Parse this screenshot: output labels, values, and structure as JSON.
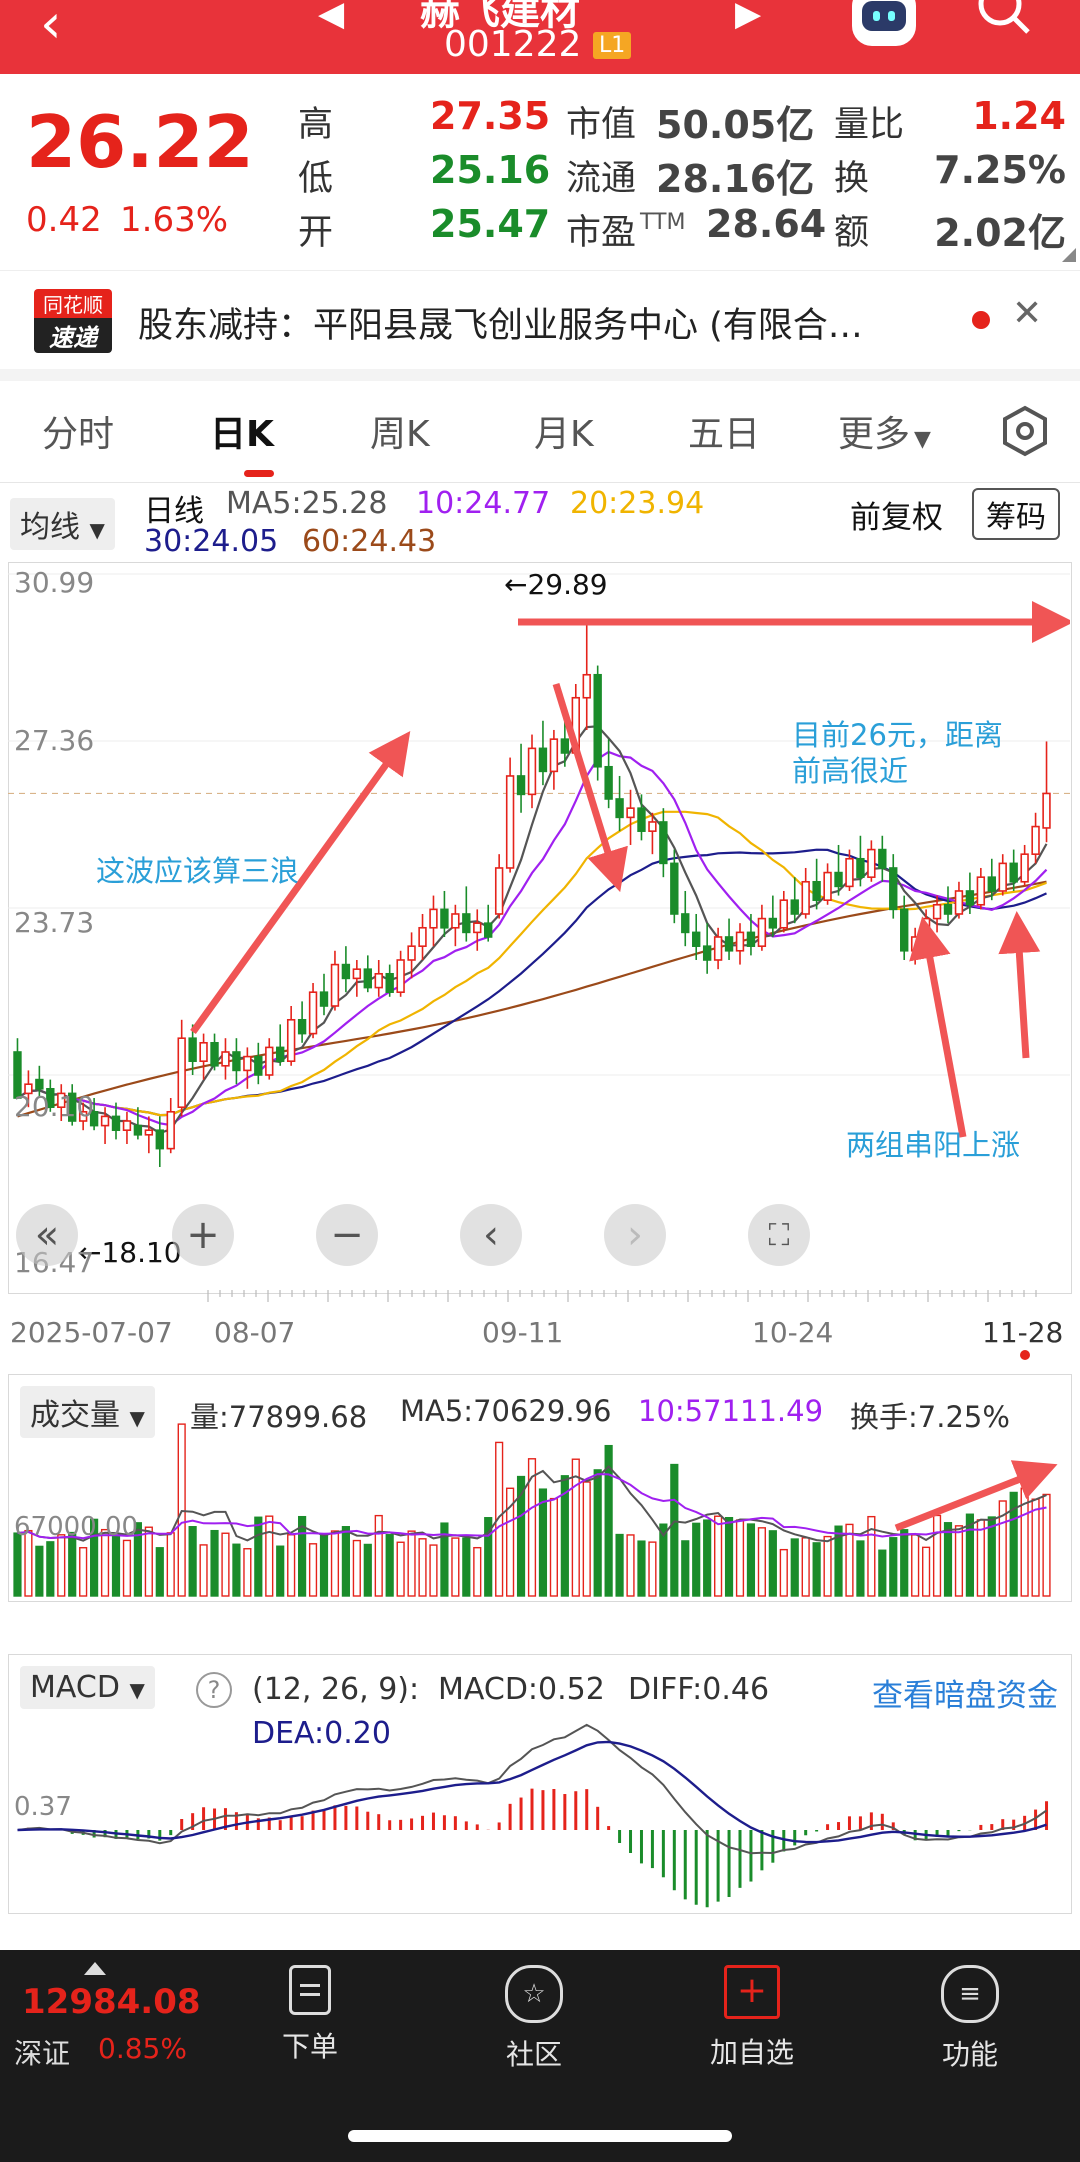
{
  "header": {
    "stock_name": "赫飞建材",
    "code": "001222",
    "level_badge": "L1"
  },
  "quote": {
    "price": "26.22",
    "change": "0.42",
    "change_pct": "1.63%",
    "high_label": "高",
    "high": "27.35",
    "low_label": "低",
    "low": "25.16",
    "open_label": "开",
    "open": "25.47",
    "mcap_label": "市值",
    "mcap": "50.05亿",
    "float_label": "流通",
    "float": "28.16亿",
    "pe_label": "市盈",
    "pe_sup": "TTM",
    "pe": "28.64",
    "vol_ratio_label": "量比",
    "vol_ratio": "1.24",
    "turnover_label": "换",
    "turnover": "7.25%",
    "amount_label": "额",
    "amount": "2.02亿"
  },
  "news": {
    "logo_line1": "同花顺",
    "logo_line2": "速递",
    "text": "股东减持：平阳县晟飞创业服务中心 (有限合…"
  },
  "tabs": [
    "分时",
    "日K",
    "周K",
    "月K",
    "五日",
    "更多"
  ],
  "ma_bar": {
    "selector": "均线",
    "type": "日线",
    "ma5": "MA5:25.28",
    "ma10": "10:24.77",
    "ma20": "20:23.94",
    "ma30": "30:24.05",
    "ma60": "60:24.43",
    "adjust": "前复权",
    "chip_button": "筹码"
  },
  "kchart": {
    "y_labels": [
      "30.99",
      "27.36",
      "23.73",
      "20.10",
      "16.47"
    ],
    "max_label": "←29.89",
    "min_label": "←18.10",
    "x_labels": [
      "2025-07-07",
      "08-07",
      "09-11",
      "10-24",
      "11-28"
    ]
  },
  "annotations": {
    "wave": "这波应该算三浪",
    "near_high_1": "目前26元，距离",
    "near_high_2": "前高很近",
    "two_groups": "两组串阳上涨"
  },
  "volume": {
    "selector": "成交量",
    "vol": "量:77899.68",
    "ma5": "MA5:70629.96",
    "ma10": "10:57111.49",
    "turnover": "换手:7.25%",
    "y_label": "67000.00"
  },
  "macd": {
    "selector": "MACD",
    "help": "?",
    "params": "(12, 26, 9):",
    "macd": "MACD:0.52",
    "diff": "DIFF:0.46",
    "dea": "DEA:0.20",
    "link": "查看暗盘资金",
    "y_label": "0.37"
  },
  "footer": {
    "index_value": "12984.08",
    "index_name": "深证",
    "index_pct": "0.85%",
    "nav": [
      "下单",
      "社区",
      "加自选",
      "功能"
    ]
  },
  "colors": {
    "up": "#e5231b",
    "down": "#1a8c2a",
    "ma5": "#555555",
    "ma10": "#a020f0",
    "ma20": "#f0b400",
    "ma30": "#1d1d8c",
    "ma60": "#9b4a1a",
    "annotation": "#2a9fd8",
    "arrow": "#f05555"
  },
  "chart_data": {
    "type": "candlestick",
    "ohlc_approx": [
      [
        20.6,
        20.9,
        19.8,
        19.6
      ],
      [
        19.7,
        20.2,
        19.4,
        19.9
      ],
      [
        20.0,
        20.3,
        19.6,
        19.8
      ],
      [
        19.8,
        20.0,
        19.3,
        19.4
      ],
      [
        19.4,
        19.9,
        19.1,
        19.7
      ],
      [
        19.7,
        19.9,
        19.0,
        19.1
      ],
      [
        19.1,
        19.5,
        18.9,
        19.3
      ],
      [
        19.3,
        19.6,
        18.9,
        19.0
      ],
      [
        19.0,
        19.4,
        18.6,
        19.2
      ],
      [
        19.2,
        19.5,
        18.7,
        18.9
      ],
      [
        18.9,
        19.3,
        18.6,
        19.1
      ],
      [
        19.0,
        19.4,
        18.7,
        18.8
      ],
      [
        18.8,
        19.2,
        18.4,
        18.9
      ],
      [
        18.9,
        19.2,
        18.1,
        18.5
      ],
      [
        18.5,
        19.6,
        18.4,
        19.3
      ],
      [
        19.4,
        21.3,
        19.2,
        20.9
      ],
      [
        20.9,
        21.2,
        20.1,
        20.4
      ],
      [
        20.4,
        21.0,
        20.0,
        20.8
      ],
      [
        20.8,
        21.0,
        20.2,
        20.3
      ],
      [
        20.3,
        20.9,
        20.0,
        20.6
      ],
      [
        20.6,
        20.9,
        19.9,
        20.2
      ],
      [
        20.2,
        20.7,
        19.8,
        20.5
      ],
      [
        20.5,
        20.8,
        19.9,
        20.1
      ],
      [
        20.1,
        20.9,
        20.0,
        20.7
      ],
      [
        20.7,
        21.2,
        20.3,
        20.4
      ],
      [
        20.4,
        21.6,
        20.3,
        21.3
      ],
      [
        21.3,
        21.7,
        20.8,
        21.0
      ],
      [
        21.0,
        22.1,
        20.9,
        21.9
      ],
      [
        21.9,
        22.3,
        21.4,
        21.6
      ],
      [
        21.6,
        22.8,
        21.5,
        22.5
      ],
      [
        22.5,
        22.9,
        21.9,
        22.2
      ],
      [
        22.2,
        22.6,
        21.8,
        22.4
      ],
      [
        22.4,
        22.7,
        21.9,
        22.0
      ],
      [
        22.0,
        22.6,
        21.8,
        22.3
      ],
      [
        22.3,
        22.5,
        21.8,
        21.9
      ],
      [
        21.9,
        22.8,
        21.8,
        22.6
      ],
      [
        22.6,
        23.2,
        22.2,
        22.9
      ],
      [
        22.9,
        23.6,
        22.6,
        23.3
      ],
      [
        23.3,
        24.0,
        22.9,
        23.7
      ],
      [
        23.7,
        24.1,
        23.1,
        23.3
      ],
      [
        23.3,
        23.8,
        22.9,
        23.6
      ],
      [
        23.6,
        24.2,
        23.0,
        23.2
      ],
      [
        23.2,
        23.7,
        22.8,
        23.4
      ],
      [
        23.4,
        23.8,
        23.0,
        23.1
      ],
      [
        23.6,
        24.9,
        23.5,
        24.6
      ],
      [
        24.6,
        27.0,
        24.5,
        26.6
      ],
      [
        26.6,
        27.3,
        25.8,
        26.2
      ],
      [
        26.2,
        27.5,
        25.9,
        27.2
      ],
      [
        27.2,
        27.8,
        26.4,
        26.7
      ],
      [
        26.7,
        27.6,
        26.3,
        27.4
      ],
      [
        27.4,
        28.0,
        26.8,
        27.1
      ],
      [
        27.1,
        28.6,
        27.0,
        28.3
      ],
      [
        28.3,
        29.89,
        27.6,
        28.8
      ],
      [
        28.8,
        29.0,
        26.5,
        26.8
      ],
      [
        26.8,
        27.4,
        25.9,
        26.1
      ],
      [
        26.1,
        26.6,
        25.4,
        25.7
      ],
      [
        25.7,
        26.3,
        25.1,
        25.9
      ],
      [
        25.9,
        26.2,
        25.2,
        25.4
      ],
      [
        25.4,
        25.8,
        24.9,
        25.6
      ],
      [
        25.6,
        25.9,
        24.4,
        24.7
      ],
      [
        24.7,
        25.0,
        23.4,
        23.6
      ],
      [
        23.6,
        24.1,
        22.9,
        23.2
      ],
      [
        23.2,
        23.6,
        22.6,
        22.9
      ],
      [
        22.9,
        23.4,
        22.3,
        22.6
      ],
      [
        22.6,
        23.3,
        22.4,
        23.1
      ],
      [
        23.1,
        23.5,
        22.6,
        22.8
      ],
      [
        22.8,
        23.4,
        22.5,
        23.2
      ],
      [
        23.2,
        23.6,
        22.7,
        22.9
      ],
      [
        22.9,
        23.8,
        22.8,
        23.5
      ],
      [
        23.5,
        24.0,
        23.1,
        23.3
      ],
      [
        23.3,
        24.1,
        23.2,
        23.9
      ],
      [
        23.9,
        24.4,
        23.4,
        23.6
      ],
      [
        23.6,
        24.6,
        23.5,
        24.3
      ],
      [
        24.3,
        24.8,
        23.7,
        23.9
      ],
      [
        23.9,
        24.7,
        23.8,
        24.5
      ],
      [
        24.5,
        25.1,
        24.0,
        24.2
      ],
      [
        24.2,
        25.0,
        24.1,
        24.8
      ],
      [
        24.8,
        25.3,
        24.2,
        24.4
      ],
      [
        24.4,
        25.2,
        24.3,
        25.0
      ],
      [
        25.0,
        25.3,
        24.3,
        24.6
      ],
      [
        24.6,
        24.9,
        23.5,
        23.7
      ],
      [
        23.7,
        24.0,
        22.6,
        22.8
      ],
      [
        22.8,
        23.3,
        22.5,
        23.1
      ],
      [
        23.1,
        23.7,
        22.8,
        23.5
      ],
      [
        23.5,
        24.0,
        23.2,
        23.8
      ],
      [
        23.8,
        24.2,
        23.4,
        23.6
      ],
      [
        23.6,
        24.3,
        23.5,
        24.1
      ],
      [
        24.1,
        24.5,
        23.6,
        23.8
      ],
      [
        23.8,
        24.6,
        23.7,
        24.4
      ],
      [
        24.4,
        24.8,
        23.9,
        24.1
      ],
      [
        24.1,
        24.9,
        24.0,
        24.7
      ],
      [
        24.7,
        25.0,
        24.1,
        24.3
      ],
      [
        24.3,
        25.1,
        24.2,
        24.9
      ],
      [
        24.9,
        25.8,
        24.7,
        25.5
      ],
      [
        25.47,
        27.35,
        25.16,
        26.22
      ]
    ]
  }
}
